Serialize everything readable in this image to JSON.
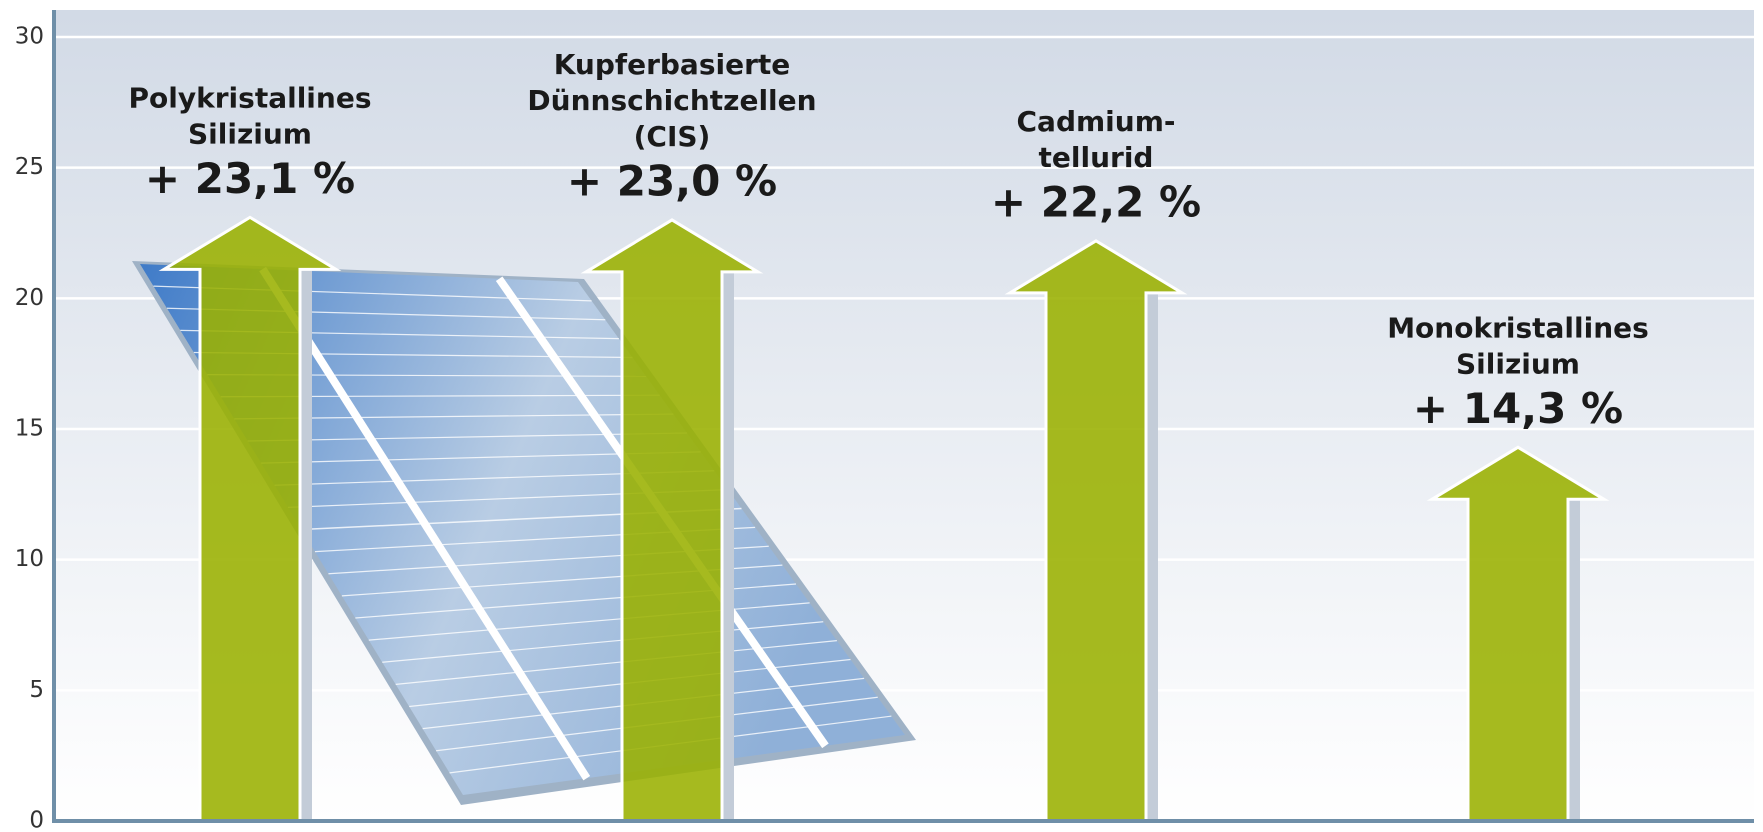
{
  "chart_data": {
    "type": "arrow-bar",
    "categories": [
      [
        "Polykristallines",
        "Silizium"
      ],
      [
        "Kupferbasierte",
        "Dünnschichtzellen",
        "(CIS)"
      ],
      [
        "Cadmium-",
        "tellurid"
      ],
      [
        "Monokristallines",
        "Silizium"
      ]
    ],
    "values": [
      23.1,
      23.0,
      22.2,
      14.3
    ],
    "value_labels": [
      "+ 23,1 %",
      "+ 23,0 %",
      "+ 22,2 %",
      "+ 14,3 %"
    ],
    "color": "#9ab000",
    "ylim": [
      0,
      30
    ],
    "yticks": [
      0,
      5,
      10,
      15,
      20,
      25,
      30
    ],
    "grid": true
  }
}
